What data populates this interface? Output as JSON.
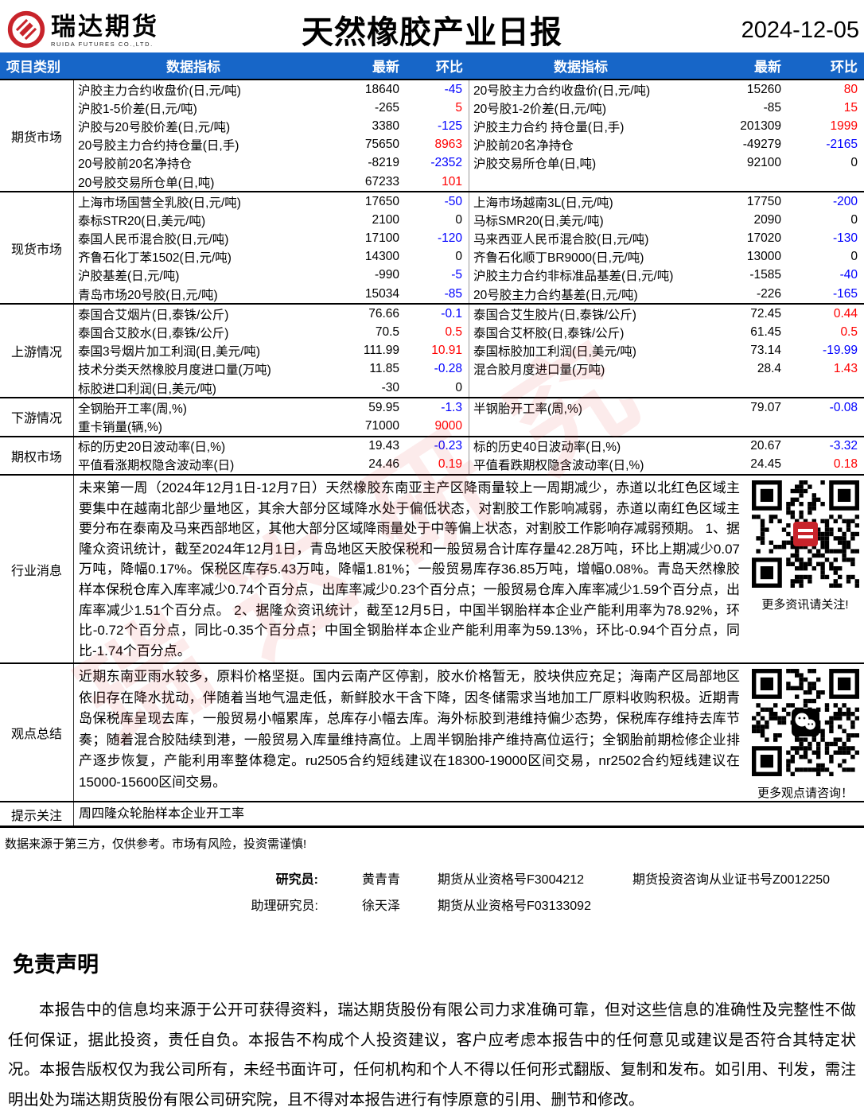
{
  "header": {
    "logo_text": "瑞达期货",
    "logo_subtext": "RUIDA FUTURES CO.,LTD.",
    "title": "天然橡胶产业日报",
    "date": "2024-12-05"
  },
  "table_header": {
    "category": "项目类别",
    "indicator": "数据指标",
    "latest": "最新",
    "change": "环比"
  },
  "colors": {
    "accent_blue": "#1766C8",
    "positive_red": "#FF0000",
    "negative_blue": "#0000FF",
    "logo_red": "#C8242B"
  },
  "watermark": "瑞达研究",
  "sections": [
    {
      "category": "期货市场",
      "type": "data",
      "rows": [
        {
          "l_name": "沪胶主力合约收盘价(日,元/吨)",
          "l_val": "18640",
          "l_chg": "-45",
          "r_name": "20号胶主力合约收盘价(日,元/吨)",
          "r_val": "15260",
          "r_chg": "80"
        },
        {
          "l_name": "沪胶1-5价差(日,元/吨)",
          "l_val": "-265",
          "l_chg": "5",
          "r_name": "20号胶1-2价差(日,元/吨)",
          "r_val": "-85",
          "r_chg": "15"
        },
        {
          "l_name": "沪胶与20号胶价差(日,元/吨)",
          "l_val": "3380",
          "l_chg": "-125",
          "r_name": "沪胶主力合约 持仓量(日,手)",
          "r_val": "201309",
          "r_chg": "1999"
        },
        {
          "l_name": "20号胶主力合约持仓量(日,手)",
          "l_val": "75650",
          "l_chg": "8963",
          "r_name": "沪胶前20名净持仓",
          "r_val": "-49279",
          "r_chg": "-2165"
        },
        {
          "l_name": "20号胶前20名净持仓",
          "l_val": "-8219",
          "l_chg": "-2352",
          "r_name": "沪胶交易所仓单(日,吨)",
          "r_val": "92100",
          "r_chg": "0"
        },
        {
          "l_name": "20号胶交易所仓单(日,吨)",
          "l_val": "67233",
          "l_chg": "101",
          "r_name": "",
          "r_val": "",
          "r_chg": ""
        }
      ]
    },
    {
      "category": "现货市场",
      "type": "data",
      "rows": [
        {
          "l_name": "上海市场国营全乳胶(日,元/吨)",
          "l_val": "17650",
          "l_chg": "-50",
          "r_name": "上海市场越南3L(日,元/吨)",
          "r_val": "17750",
          "r_chg": "-200"
        },
        {
          "l_name": "泰标STR20(日,美元/吨)",
          "l_val": "2100",
          "l_chg": "0",
          "r_name": "马标SMR20(日,美元/吨)",
          "r_val": "2090",
          "r_chg": "0"
        },
        {
          "l_name": "泰国人民币混合胶(日,元/吨)",
          "l_val": "17100",
          "l_chg": "-120",
          "r_name": "马来西亚人民币混合胶(日,元/吨)",
          "r_val": "17020",
          "r_chg": "-130"
        },
        {
          "l_name": "齐鲁石化丁苯1502(日,元/吨)",
          "l_val": "14300",
          "l_chg": "0",
          "r_name": "齐鲁石化顺丁BR9000(日,元/吨)",
          "r_val": "13000",
          "r_chg": "0"
        },
        {
          "l_name": "沪胶基差(日,元/吨)",
          "l_val": "-990",
          "l_chg": "-5",
          "r_name": "沪胶主力合约非标准品基差(日,元/吨)",
          "r_val": "-1585",
          "r_chg": "-40"
        },
        {
          "l_name": "青岛市场20号胶(日,元/吨)",
          "l_val": "15034",
          "l_chg": "-85",
          "r_name": "20号胶主力合约基差(日,元/吨)",
          "r_val": "-226",
          "r_chg": "-165"
        }
      ]
    },
    {
      "category": "上游情况",
      "type": "data",
      "rows": [
        {
          "l_name": "泰国合艾烟片(日,泰铢/公斤)",
          "l_val": "76.66",
          "l_chg": "-0.1",
          "r_name": "泰国合艾生胶片(日,泰铢/公斤)",
          "r_val": "72.45",
          "r_chg": "0.44"
        },
        {
          "l_name": "泰国合艾胶水(日,泰铢/公斤)",
          "l_val": "70.5",
          "l_chg": "0.5",
          "r_name": "泰国合艾杯胶(日,泰铢/公斤)",
          "r_val": "61.45",
          "r_chg": "0.5"
        },
        {
          "l_name": "泰国3号烟片加工利润(日,美元/吨)",
          "l_val": "111.99",
          "l_chg": "10.91",
          "r_name": "泰国标胶加工利润(日,美元/吨)",
          "r_val": "73.14",
          "r_chg": "-19.99"
        },
        {
          "l_name": "技术分类天然橡胶月度进口量(万吨)",
          "l_val": "11.85",
          "l_chg": "-0.28",
          "r_name": "混合胶月度进口量(万吨)",
          "r_val": "28.4",
          "r_chg": "1.43"
        },
        {
          "l_name": "标胶进口利润(日,美元/吨)",
          "l_val": "-30",
          "l_chg": "0",
          "r_name": "",
          "r_val": "",
          "r_chg": ""
        }
      ]
    },
    {
      "category": "下游情况",
      "type": "data",
      "rows": [
        {
          "l_name": "全钢胎开工率(周,%)",
          "l_val": "59.95",
          "l_chg": "-1.3",
          "r_name": "半钢胎开工率(周,%)",
          "r_val": "79.07",
          "r_chg": "-0.08"
        },
        {
          "l_name": "重卡销量(辆,%)",
          "l_val": "71000",
          "l_chg": "9000",
          "r_name": "",
          "r_val": "",
          "r_chg": ""
        }
      ]
    },
    {
      "category": "期权市场",
      "type": "data",
      "rows": [
        {
          "l_name": "标的历史20日波动率(日,%)",
          "l_val": "19.43",
          "l_chg": "-0.23",
          "r_name": "标的历史40日波动率(日,%)",
          "r_val": "20.67",
          "r_chg": "-3.32"
        },
        {
          "l_name": "平值看涨期权隐含波动率(日)",
          "l_val": "24.46",
          "l_chg": "0.19",
          "r_name": "平值看跌期权隐含波动率(日,%)",
          "r_val": "24.45",
          "r_chg": "0.18"
        }
      ]
    },
    {
      "category": "行业消息",
      "type": "text",
      "text": "未来第一周（2024年12月1日-12月7日）天然橡胶东南亚主产区降雨量较上一周期减少，赤道以北红色区域主要集中在越南北部少量地区，其余大部分区域降水处于偏低状态，对割胶工作影响减弱，赤道以南红色区域主要分布在泰南及马来西部地区，其他大部分区域降雨量处于中等偏上状态，对割胶工作影响存减弱预期。 1、据隆众资讯统计，截至2024年12月1日，青岛地区天胶保税和一般贸易合计库存量42.28万吨，环比上期减少0.07万吨，降幅0.17%。保税区库存5.43万吨，降幅1.81%；一般贸易库存36.85万吨，增幅0.08%。青岛天然橡胶样本保税仓库入库率减少0.74个百分点，出库率减少0.23个百分点；一般贸易仓库入库率减少1.59个百分点，出库率减少1.51个百分点。 2、据隆众资讯统计，截至12月5日，中国半钢胎样本企业产能利用率为78.92%，环比-0.72个百分点，同比-0.35个百分点；中国全钢胎样本企业产能利用率为59.13%，环比-0.94个百分点，同比-1.74个百分点。",
      "qr_caption": "更多资讯请关注!",
      "qr_badge": "red",
      "min_height": 232
    },
    {
      "category": "观点总结",
      "type": "text",
      "text": "近期东南亚雨水较多，原料价格坚挺。国内云南产区停割，胶水价格暂无，胶块供应充足；海南产区局部地区依旧存在降水扰动，伴随着当地气温走低，新鲜胶水干含下降，因冬储需求当地加工厂原料收购积极。近期青岛保税库呈现去库，一般贸易小幅累库，总库存小幅去库。海外标胶到港维持偏少态势，保税库存维持去库节奏；随着混合胶陆续到港，一般贸易入库量维持高位。上周半钢胎排产维持高位运行；全钢胎前期检修企业排产逐步恢复，产能利用率整体稳定。ru2505合约短线建议在18300-19000区间交易，nr2502合约短线建议在15000-15600区间交易。",
      "qr_caption": "更多观点请咨询！",
      "qr_badge": "wechat",
      "min_height": 162
    },
    {
      "category": "提示关注",
      "type": "focus",
      "text": "周四隆众轮胎样本企业开工率"
    }
  ],
  "footnote": "数据来源于第三方，仅供参考。市场有风险，投资需谨慎!",
  "researchers": {
    "row1_label": "研究员:",
    "row1_name": "黄青青",
    "row1_cert": "期货从业资格号F3004212",
    "row1_cert2": "期货投资咨询从业证书号Z0012250",
    "row2_label": "助理研究员:",
    "row2_name": "徐天泽",
    "row2_cert": "期货从业资格号F03133092"
  },
  "disclaimer": {
    "title": "免责声明",
    "body": "本报告中的信息均来源于公开可获得资料，瑞达期货股份有限公司力求准确可靠，但对这些信息的准确性及完整性不做任何保证，据此投资，责任自负。本报告不构成个人投资建议，客户应考虑本报告中的任何意见或建议是否符合其特定状况。本报告版权仅为我公司所有，未经书面许可，任何机构和个人不得以任何形式翻版、复制和发布。如引用、刊发，需注明出处为瑞达期货股份有限公司研究院，且不得对本报告进行有悖原意的引用、删节和修改。"
  }
}
